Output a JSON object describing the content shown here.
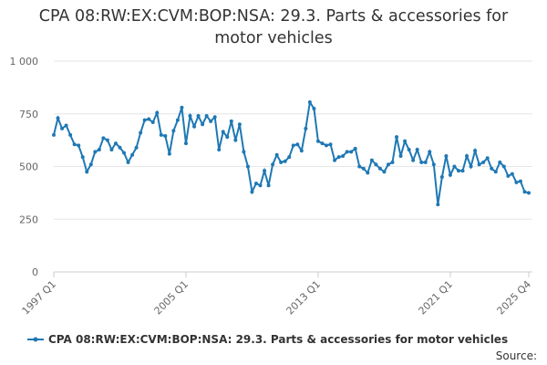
{
  "chart_data": {
    "type": "line",
    "title": "CPA 08:RW:EX:CVM:BOP:NSA: 29.3. Parts & accessories for motor vehicles",
    "categories": [
      "1997 Q1",
      null,
      null,
      null,
      null,
      null,
      null,
      null,
      null,
      null,
      null,
      null,
      null,
      null,
      null,
      null,
      null,
      null,
      null,
      null,
      null,
      null,
      null,
      null,
      null,
      null,
      null,
      null,
      null,
      null,
      null,
      null,
      "2005 Q1",
      null,
      null,
      null,
      null,
      null,
      null,
      null,
      null,
      null,
      null,
      null,
      null,
      null,
      null,
      null,
      null,
      null,
      null,
      null,
      null,
      null,
      null,
      null,
      null,
      null,
      null,
      null,
      null,
      null,
      null,
      null,
      "2013 Q1",
      null,
      null,
      null,
      null,
      null,
      null,
      null,
      null,
      null,
      null,
      null,
      null,
      null,
      null,
      null,
      null,
      null,
      null,
      null,
      null,
      null,
      null,
      null,
      null,
      null,
      null,
      null,
      null,
      null,
      null,
      null,
      "2021 Q1",
      null,
      null,
      null,
      null,
      null,
      null,
      null,
      null,
      null,
      null,
      null,
      null,
      null,
      null,
      null,
      null,
      null,
      null,
      "2025 Q4"
    ],
    "series": [
      {
        "name": "CPA 08:RW:EX:CVM:BOP:NSA: 29.3. Parts & accessories for motor vehicles",
        "color": "#1f78b4",
        "values": [
          650,
          730,
          680,
          695,
          650,
          605,
          600,
          545,
          475,
          510,
          570,
          580,
          635,
          625,
          580,
          610,
          590,
          565,
          520,
          555,
          590,
          660,
          720,
          725,
          710,
          755,
          650,
          645,
          560,
          670,
          720,
          780,
          610,
          740,
          690,
          740,
          700,
          740,
          715,
          735,
          580,
          665,
          640,
          715,
          625,
          700,
          570,
          500,
          380,
          420,
          410,
          480,
          410,
          510,
          555,
          520,
          525,
          545,
          600,
          605,
          575,
          680,
          805,
          775,
          620,
          610,
          600,
          605,
          530,
          545,
          550,
          570,
          570,
          585,
          500,
          490,
          470,
          530,
          510,
          490,
          475,
          510,
          520,
          640,
          550,
          620,
          580,
          530,
          580,
          520,
          520,
          570,
          510,
          320,
          450,
          550,
          460,
          500,
          480,
          480,
          550,
          500,
          575,
          510,
          520,
          540,
          490,
          475,
          520,
          500,
          455,
          465,
          425,
          430,
          380,
          375
        ]
      }
    ],
    "ylim": [
      0,
      1000
    ],
    "yticks": [
      0,
      250,
      500,
      750,
      {
        "value": 1000,
        "label": "1 000"
      }
    ],
    "grid": true,
    "legend": "bottom",
    "source": "Source:"
  }
}
